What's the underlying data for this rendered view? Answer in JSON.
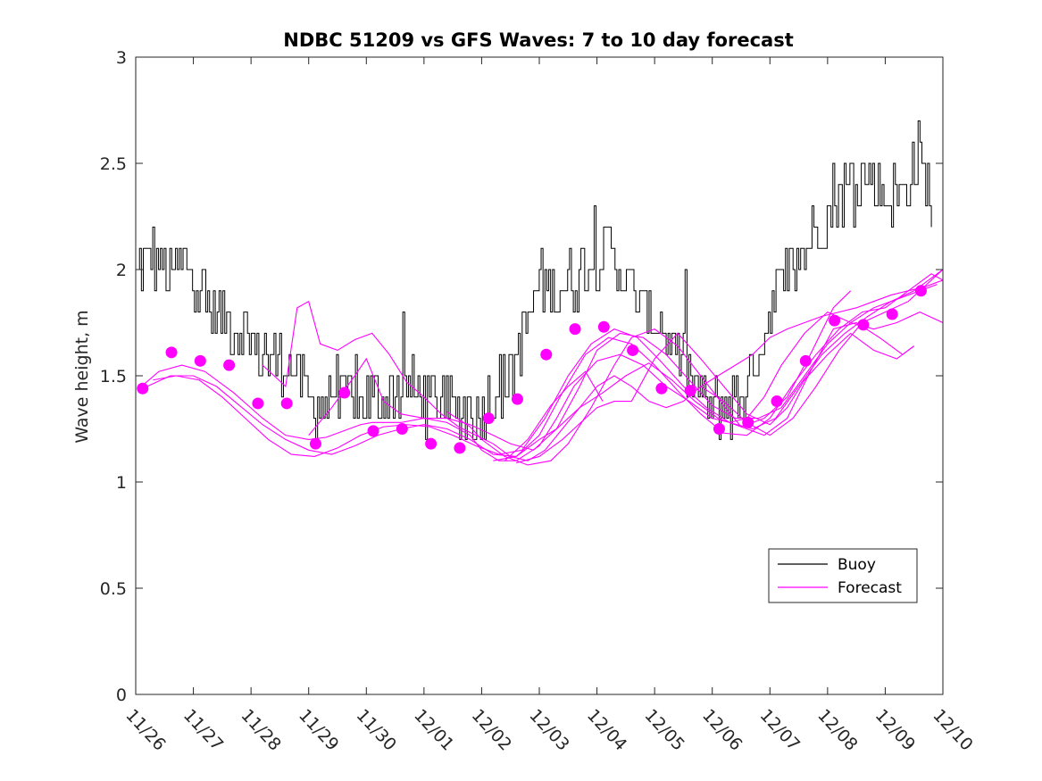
{
  "chart_data": {
    "type": "line",
    "title": "NDBC 51209 vs GFS Waves: 7 to 10 day forecast",
    "xlabel": "",
    "ylabel": "Wave height, m",
    "xlim": [
      0,
      14
    ],
    "ylim": [
      0,
      3
    ],
    "x_tick_values": [
      0,
      1,
      2,
      3,
      4,
      5,
      6,
      7,
      8,
      9,
      10,
      11,
      12,
      13,
      14
    ],
    "x_tick_labels": [
      "11/26",
      "11/27",
      "11/28",
      "11/29",
      "11/30",
      "12/01",
      "12/02",
      "12/03",
      "12/04",
      "12/05",
      "12/06",
      "12/07",
      "12/08",
      "12/09",
      "12/10"
    ],
    "y_tick_values": [
      0,
      0.5,
      1,
      1.5,
      2,
      2.5,
      3
    ],
    "y_tick_labels": [
      "0",
      "0.5",
      "1",
      "1.5",
      "2",
      "2.5",
      "3"
    ],
    "legend": {
      "position": "bottom-right",
      "entries": [
        {
          "label": "Buoy",
          "color": "#000000"
        },
        {
          "label": "Forecast",
          "color": "#ff00ff"
        }
      ]
    },
    "buoy_anchors": {
      "name": "Buoy",
      "color": "#000000",
      "x": [
        0.0,
        0.3,
        0.6,
        0.9,
        1.2,
        1.5,
        1.8,
        2.1,
        2.4,
        2.7,
        3.0,
        3.5,
        4.0,
        4.4,
        4.8,
        5.1,
        5.5,
        5.9,
        6.2,
        6.5,
        6.8,
        7.0,
        7.3,
        7.6,
        8.0,
        8.2,
        8.5,
        8.9,
        9.3,
        9.7,
        10.0,
        10.3,
        10.6,
        10.9,
        11.2,
        11.5,
        11.8,
        12.1,
        12.4,
        12.7,
        13.0,
        13.3,
        13.6,
        13.8
      ],
      "y": [
        2.0,
        2.05,
        1.95,
        2.05,
        1.85,
        1.75,
        1.72,
        1.62,
        1.58,
        1.55,
        1.38,
        1.38,
        1.38,
        1.42,
        1.45,
        1.38,
        1.36,
        1.33,
        1.4,
        1.5,
        1.75,
        1.95,
        1.9,
        1.95,
        2.05,
        2.1,
        1.95,
        1.8,
        1.65,
        1.45,
        1.33,
        1.35,
        1.45,
        1.7,
        1.95,
        2.05,
        2.2,
        2.35,
        2.4,
        2.45,
        2.35,
        2.38,
        2.55,
        2.3
      ],
      "noise_amplitude": 0.14,
      "samples": 420
    },
    "forecast_series": [
      {
        "name": "Forecast",
        "x": [
          0.1,
          0.4,
          0.8,
          1.2,
          1.7,
          2.2,
          2.6,
          3.0,
          3.3,
          3.6,
          3.9,
          4.1,
          4.3,
          4.6,
          5.0,
          5.4,
          5.8,
          6.0,
          6.3,
          6.6,
          7.0,
          7.3,
          7.6,
          8.0,
          8.4,
          8.8,
          9.2,
          9.6,
          10.0,
          10.3,
          10.6,
          10.9,
          11.2,
          11.6,
          12.0,
          12.4,
          12.8,
          13.2,
          13.6,
          14.0
        ],
        "y": [
          1.45,
          1.52,
          1.55,
          1.52,
          1.42,
          1.3,
          1.22,
          1.2,
          1.21,
          1.24,
          1.27,
          1.28,
          1.28,
          1.28,
          1.3,
          1.28,
          1.22,
          1.15,
          1.1,
          1.1,
          1.17,
          1.3,
          1.45,
          1.57,
          1.6,
          1.55,
          1.45,
          1.38,
          1.3,
          1.28,
          1.3,
          1.4,
          1.55,
          1.7,
          1.8,
          1.75,
          1.72,
          1.75,
          1.8,
          1.75
        ]
      },
      {
        "name": "Forecast",
        "x": [
          0.2,
          0.6,
          1.0,
          1.4,
          1.8,
          2.2,
          2.6,
          3.0,
          3.4,
          3.8,
          4.2,
          4.6,
          5.0,
          5.4,
          5.8,
          6.2,
          6.6,
          7.0,
          7.4,
          7.8,
          8.2,
          8.6,
          9.0,
          9.4,
          9.8,
          10.2,
          10.6,
          11.0,
          11.4,
          11.8,
          12.2,
          12.6,
          13.0,
          13.4,
          13.8,
          14.0
        ],
        "y": [
          1.45,
          1.5,
          1.5,
          1.45,
          1.36,
          1.27,
          1.2,
          1.15,
          1.13,
          1.17,
          1.22,
          1.25,
          1.27,
          1.25,
          1.2,
          1.13,
          1.12,
          1.22,
          1.42,
          1.6,
          1.68,
          1.65,
          1.55,
          1.43,
          1.32,
          1.23,
          1.22,
          1.3,
          1.46,
          1.6,
          1.72,
          1.8,
          1.82,
          1.9,
          1.98,
          1.95
        ]
      },
      {
        "name": "Forecast",
        "x": [
          0.3,
          0.7,
          1.1,
          1.5,
          1.9,
          2.3,
          2.7,
          3.1,
          3.5,
          3.9,
          4.3,
          4.7,
          5.1,
          5.5,
          5.9,
          6.3,
          6.7,
          7.1,
          7.5,
          7.9,
          8.3,
          8.7,
          9.1,
          9.5,
          9.9,
          10.3,
          10.7,
          11.1,
          11.5,
          11.9,
          12.3,
          12.7,
          13.1,
          13.5,
          13.9,
          14.0
        ],
        "y": [
          1.48,
          1.5,
          1.48,
          1.4,
          1.3,
          1.2,
          1.13,
          1.12,
          1.16,
          1.22,
          1.26,
          1.27,
          1.26,
          1.22,
          1.17,
          1.13,
          1.15,
          1.3,
          1.5,
          1.65,
          1.72,
          1.68,
          1.57,
          1.45,
          1.35,
          1.28,
          1.25,
          1.3,
          1.45,
          1.6,
          1.7,
          1.78,
          1.85,
          1.9,
          1.98,
          2.0
        ]
      },
      {
        "name": "Forecast",
        "x": [
          2.2,
          2.6,
          2.8,
          3.0,
          3.2,
          3.5,
          3.8,
          4.1,
          4.4,
          4.7,
          5.0,
          5.3,
          5.6,
          5.9,
          6.2,
          6.5,
          6.8,
          7.1,
          7.4,
          7.7,
          8.0,
          8.3,
          8.6,
          8.9,
          9.2,
          9.5,
          9.8,
          10.1,
          10.4,
          10.7,
          11.0,
          11.3,
          11.6,
          11.9,
          12.2,
          12.5,
          12.8,
          13.1,
          13.4,
          13.7,
          14.0
        ],
        "y": [
          1.55,
          1.45,
          1.82,
          1.85,
          1.65,
          1.62,
          1.67,
          1.7,
          1.6,
          1.47,
          1.4,
          1.32,
          1.26,
          1.22,
          1.18,
          1.12,
          1.1,
          1.15,
          1.25,
          1.35,
          1.45,
          1.5,
          1.45,
          1.38,
          1.35,
          1.38,
          1.45,
          1.5,
          1.55,
          1.6,
          1.68,
          1.72,
          1.75,
          1.78,
          1.8,
          1.82,
          1.85,
          1.88,
          1.9,
          1.92,
          1.95
        ]
      },
      {
        "name": "Forecast",
        "x": [
          3.0,
          3.4,
          3.8,
          4.0,
          4.3,
          4.6,
          5.0,
          5.4,
          5.8,
          6.2,
          6.5,
          6.9,
          7.3,
          7.7,
          8.0,
          8.4,
          8.8,
          9.2,
          9.6,
          10.0,
          10.4,
          10.8,
          11.2,
          11.6,
          12.0,
          12.4,
          12.8,
          13.2,
          13.6,
          13.9
        ],
        "y": [
          1.22,
          1.35,
          1.5,
          1.58,
          1.38,
          1.32,
          1.3,
          1.3,
          1.27,
          1.22,
          1.18,
          1.15,
          1.25,
          1.45,
          1.62,
          1.7,
          1.68,
          1.6,
          1.48,
          1.36,
          1.3,
          1.3,
          1.35,
          1.5,
          1.65,
          1.75,
          1.82,
          1.86,
          1.9,
          1.93
        ]
      },
      {
        "name": "Forecast",
        "x": [
          5.4,
          5.8,
          6.0,
          6.4,
          6.8,
          7.2,
          7.5,
          7.9,
          8.3,
          8.6,
          9.0,
          9.4,
          9.8,
          10.2,
          10.5,
          10.9,
          11.3,
          11.7,
          12.1,
          12.5,
          12.9,
          13.3,
          13.5
        ],
        "y": [
          1.33,
          1.26,
          1.2,
          1.12,
          1.08,
          1.1,
          1.18,
          1.35,
          1.55,
          1.68,
          1.72,
          1.64,
          1.5,
          1.36,
          1.26,
          1.22,
          1.3,
          1.52,
          1.72,
          1.75,
          1.68,
          1.6,
          1.64
        ]
      },
      {
        "name": "Forecast",
        "x": [
          6.2,
          6.6,
          7.0,
          7.3,
          7.7,
          8.1,
          8.5,
          8.9,
          9.3,
          9.7,
          10.1,
          10.5,
          10.9,
          11.3,
          11.7,
          12.1,
          12.4
        ],
        "y": [
          1.1,
          1.12,
          1.2,
          1.25,
          1.35,
          1.42,
          1.5,
          1.56,
          1.48,
          1.38,
          1.3,
          1.26,
          1.3,
          1.4,
          1.6,
          1.82,
          1.9
        ]
      },
      {
        "name": "Forecast",
        "x": [
          6.6,
          7.0,
          7.4,
          7.8,
          8.0,
          8.3,
          8.6,
          9.0,
          9.4,
          9.8,
          10.2,
          10.6,
          11.0,
          11.3,
          11.6,
          12.0,
          12.4,
          12.8,
          13.2,
          13.5
        ],
        "y": [
          1.09,
          1.12,
          1.2,
          1.3,
          1.35,
          1.38,
          1.38,
          1.58,
          1.7,
          1.58,
          1.45,
          1.32,
          1.27,
          1.35,
          1.48,
          1.6,
          1.7,
          1.62,
          1.58,
          1.64
        ]
      },
      {
        "name": "Forecast",
        "x": [
          6.4,
          6.8,
          7.2,
          7.5,
          7.8,
          8.1
        ],
        "y": [
          1.1,
          1.2,
          1.36,
          1.45,
          1.52,
          1.38
        ]
      },
      {
        "name": "Forecast",
        "x": [
          9.8,
          10.2,
          10.6,
          11.0,
          11.4,
          11.8,
          12.2,
          12.6,
          13.0,
          13.4,
          13.8,
          14.0
        ],
        "y": [
          1.45,
          1.38,
          1.28,
          1.22,
          1.3,
          1.45,
          1.62,
          1.75,
          1.8,
          1.85,
          1.95,
          2.0
        ]
      }
    ],
    "forecast_points": {
      "name": "Forecast",
      "color": "#ff00ff",
      "x": [
        0.12,
        0.62,
        1.12,
        1.62,
        2.12,
        2.62,
        3.12,
        3.62,
        4.12,
        4.62,
        5.12,
        5.62,
        6.12,
        6.62,
        7.12,
        7.62,
        8.12,
        8.62,
        9.12,
        9.62,
        10.12,
        10.62,
        11.12,
        11.62,
        12.12,
        12.62,
        13.12,
        13.62
      ],
      "y": [
        1.44,
        1.61,
        1.57,
        1.55,
        1.37,
        1.37,
        1.18,
        1.42,
        1.24,
        1.25,
        1.18,
        1.16,
        1.3,
        1.39,
        1.6,
        1.72,
        1.73,
        1.62,
        1.44,
        1.43,
        1.25,
        1.28,
        1.38,
        1.57,
        1.76,
        1.74,
        1.79,
        1.9
      ]
    }
  }
}
